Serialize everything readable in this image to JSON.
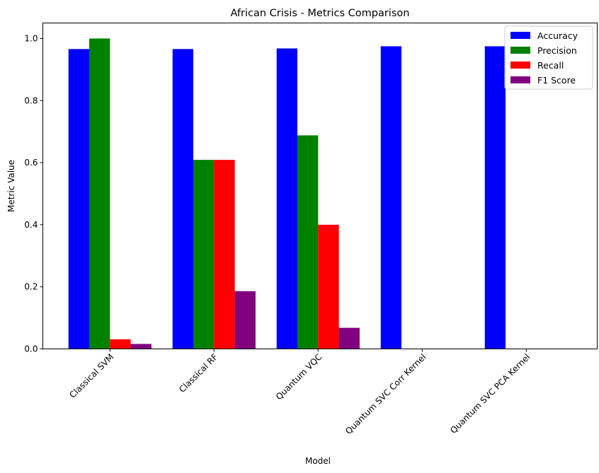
{
  "chart_data": {
    "type": "bar",
    "title": "African Crisis - Metrics Comparison",
    "xlabel": "Model",
    "ylabel": "Metric Value",
    "ylim": [
      0,
      1.05
    ],
    "yticks": [
      0.0,
      0.2,
      0.4,
      0.6,
      0.8,
      1.0
    ],
    "ytick_labels": [
      "0.0",
      "0.2",
      "0.4",
      "0.6",
      "0.8",
      "1.0"
    ],
    "categories": [
      "Classical SVM",
      "Classical RF",
      "Quantum VQC",
      "Quantum SVC Corr Kernel",
      "Quantum SVC PCA Kernel"
    ],
    "grid": false,
    "legend_position": "top-right",
    "series": [
      {
        "name": "Accuracy",
        "color": "#0000ff",
        "values": [
          0.966,
          0.966,
          0.968,
          0.975,
          0.975
        ]
      },
      {
        "name": "Precision",
        "color": "#008000",
        "values": [
          1.0,
          0.609,
          0.688,
          0.0,
          0.0
        ]
      },
      {
        "name": "Recall",
        "color": "#ff0000",
        "values": [
          0.031,
          0.609,
          0.4,
          0.0,
          0.0
        ]
      },
      {
        "name": "F1 Score",
        "color": "#800080",
        "values": [
          0.016,
          0.186,
          0.068,
          0.0,
          0.0
        ]
      }
    ]
  }
}
